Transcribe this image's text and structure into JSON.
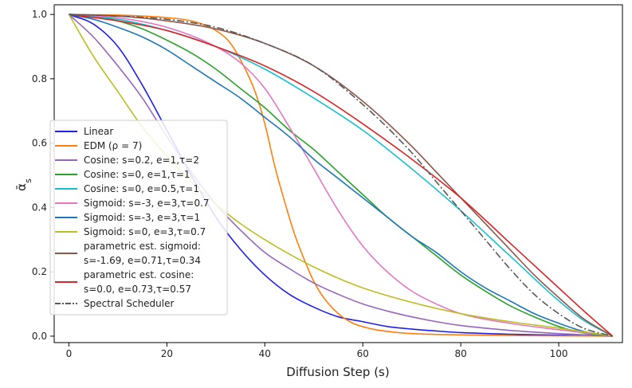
{
  "chart_data": {
    "type": "line",
    "title": "",
    "xlabel": "Diffusion Step (s)",
    "ylabel_main": "ᾱ",
    "ylabel_sub": "s",
    "xlim": [
      -3,
      113
    ],
    "ylim": [
      -0.02,
      1.03
    ],
    "xticks": [
      0,
      20,
      40,
      60,
      80,
      100
    ],
    "yticks": [
      0.0,
      0.2,
      0.4,
      0.6,
      0.8,
      1.0
    ],
    "xtick_labels": [
      "0",
      "20",
      "40",
      "60",
      "80",
      "100"
    ],
    "ytick_labels": [
      "0.0",
      "0.2",
      "0.4",
      "0.6",
      "0.8",
      "1.0"
    ],
    "legend_position": "lower-left",
    "series": [
      {
        "name": "Linear",
        "label_lines": [
          "Linear"
        ],
        "color": "#1f1fe6",
        "dash": "solid",
        "x": [
          0,
          5,
          10,
          15,
          20,
          25,
          30,
          35,
          40,
          45,
          50,
          55,
          60,
          65,
          70,
          75,
          80,
          90,
          100,
          111
        ],
        "y": [
          1.0,
          0.97,
          0.9,
          0.78,
          0.64,
          0.5,
          0.37,
          0.27,
          0.19,
          0.13,
          0.09,
          0.06,
          0.045,
          0.03,
          0.022,
          0.016,
          0.011,
          0.006,
          0.003,
          0.0
        ]
      },
      {
        "name": "EDM (ρ = 7)",
        "label_lines": [
          "EDM (ρ = 7)"
        ],
        "color": "#ff7f0e",
        "dash": "solid",
        "x": [
          0,
          5,
          10,
          15,
          20,
          25,
          30,
          33,
          36,
          38,
          40,
          42,
          44,
          46,
          48,
          50,
          52,
          55,
          58,
          62,
          66,
          70,
          80,
          90,
          100,
          111
        ],
        "y": [
          1.0,
          0.999,
          0.998,
          0.995,
          0.99,
          0.98,
          0.95,
          0.91,
          0.83,
          0.76,
          0.66,
          0.53,
          0.42,
          0.32,
          0.24,
          0.17,
          0.12,
          0.07,
          0.04,
          0.022,
          0.013,
          0.008,
          0.004,
          0.002,
          0.001,
          0.0
        ]
      },
      {
        "name": "Cosine: s=0.2, e=1,τ=2",
        "label_lines": [
          "Cosine: s=0.2, e=1,τ=2"
        ],
        "color": "#9467bd",
        "dash": "solid",
        "x": [
          0,
          5,
          10,
          15,
          20,
          25,
          30,
          35,
          40,
          45,
          50,
          55,
          60,
          65,
          70,
          75,
          80,
          90,
          100,
          111
        ],
        "y": [
          1.0,
          0.93,
          0.84,
          0.74,
          0.62,
          0.51,
          0.41,
          0.33,
          0.26,
          0.21,
          0.165,
          0.13,
          0.1,
          0.078,
          0.06,
          0.045,
          0.033,
          0.018,
          0.008,
          0.0
        ]
      },
      {
        "name": "Cosine: s=0, e=1,τ=1",
        "label_lines": [
          "Cosine: s=0, e=1,τ=1"
        ],
        "color": "#2ca02c",
        "dash": "solid",
        "x": [
          0,
          5,
          10,
          15,
          20,
          25,
          30,
          35,
          40,
          45,
          50,
          55,
          60,
          65,
          70,
          75,
          80,
          85,
          90,
          95,
          100,
          105,
          111
        ],
        "y": [
          1.0,
          0.995,
          0.98,
          0.955,
          0.92,
          0.88,
          0.83,
          0.77,
          0.71,
          0.64,
          0.58,
          0.51,
          0.44,
          0.37,
          0.31,
          0.25,
          0.19,
          0.14,
          0.095,
          0.06,
          0.03,
          0.01,
          0.0
        ]
      },
      {
        "name": "Cosine: s=0, e=0.5,τ=1",
        "label_lines": [
          "Cosine: s=0, e=0.5,τ=1"
        ],
        "color": "#17becf",
        "dash": "solid",
        "x": [
          0,
          10,
          20,
          30,
          40,
          50,
          60,
          70,
          80,
          90,
          100,
          105,
          111
        ],
        "y": [
          1.0,
          0.985,
          0.95,
          0.9,
          0.83,
          0.74,
          0.64,
          0.52,
          0.39,
          0.25,
          0.11,
          0.05,
          0.0
        ]
      },
      {
        "name": "Sigmoid: s=-3, e=3,τ=0.7",
        "label_lines": [
          "Sigmoid: s=-3, e=3,τ=0.7"
        ],
        "color": "#e377c2",
        "dash": "solid",
        "x": [
          0,
          10,
          20,
          30,
          35,
          40,
          45,
          50,
          55,
          60,
          65,
          70,
          75,
          80,
          90,
          100,
          111
        ],
        "y": [
          1.0,
          0.99,
          0.96,
          0.9,
          0.85,
          0.77,
          0.65,
          0.52,
          0.39,
          0.28,
          0.2,
          0.14,
          0.1,
          0.07,
          0.04,
          0.02,
          0.0
        ]
      },
      {
        "name": "Sigmoid: s=-3, e=3,τ=1",
        "label_lines": [
          "Sigmoid: s=-3, e=3,τ=1"
        ],
        "color": "#1f77b4",
        "dash": "solid",
        "x": [
          0,
          5,
          10,
          15,
          20,
          25,
          30,
          35,
          40,
          45,
          50,
          55,
          60,
          65,
          70,
          75,
          80,
          85,
          90,
          95,
          100,
          105,
          111
        ],
        "y": [
          1.0,
          0.985,
          0.96,
          0.93,
          0.89,
          0.84,
          0.79,
          0.74,
          0.68,
          0.62,
          0.55,
          0.49,
          0.43,
          0.37,
          0.31,
          0.26,
          0.2,
          0.15,
          0.11,
          0.07,
          0.04,
          0.015,
          0.0
        ]
      },
      {
        "name": "Sigmoid: s=0, e=3,τ=0.7",
        "label_lines": [
          "Sigmoid: s=0, e=3,τ=0.7"
        ],
        "color": "#bcbd22",
        "dash": "solid",
        "x": [
          0,
          5,
          10,
          15,
          20,
          25,
          30,
          35,
          40,
          45,
          50,
          55,
          60,
          70,
          80,
          90,
          100,
          111
        ],
        "y": [
          1.0,
          0.87,
          0.76,
          0.65,
          0.56,
          0.48,
          0.41,
          0.35,
          0.3,
          0.255,
          0.215,
          0.18,
          0.15,
          0.105,
          0.07,
          0.045,
          0.025,
          0.0
        ]
      },
      {
        "name": "parametric est. sigmoid: s=-1.69, e=0.71,τ=0.34",
        "label_lines": [
          "parametric est. sigmoid:",
          "s=-1.69, e=0.71,τ=0.34"
        ],
        "color": "#8c564b",
        "dash": "solid",
        "x": [
          0,
          10,
          20,
          30,
          40,
          50,
          60,
          70,
          75,
          80,
          85,
          90,
          95,
          100,
          105,
          111
        ],
        "y": [
          1.0,
          0.995,
          0.98,
          0.955,
          0.91,
          0.84,
          0.73,
          0.59,
          0.51,
          0.43,
          0.35,
          0.27,
          0.19,
          0.12,
          0.055,
          0.0
        ]
      },
      {
        "name": "parametric est. cosine: s=0.0, e=0.73,τ=0.57",
        "label_lines": [
          "parametric est. cosine:",
          "s=0.0, e=0.73,τ=0.57"
        ],
        "color": "#d62728",
        "dash": "solid",
        "x": [
          0,
          10,
          20,
          30,
          40,
          50,
          60,
          70,
          80,
          90,
          100,
          105,
          111
        ],
        "y": [
          1.0,
          0.98,
          0.95,
          0.9,
          0.84,
          0.76,
          0.66,
          0.55,
          0.43,
          0.29,
          0.15,
          0.08,
          0.0
        ]
      },
      {
        "name": "Spectral Scheduler",
        "label_lines": [
          "Spectral Scheduler"
        ],
        "color": "#595959",
        "dash": "dashdot",
        "x": [
          0,
          10,
          20,
          30,
          40,
          50,
          60,
          70,
          75,
          80,
          85,
          90,
          95,
          100,
          105,
          111
        ],
        "y": [
          1.0,
          0.995,
          0.985,
          0.96,
          0.91,
          0.84,
          0.72,
          0.57,
          0.48,
          0.39,
          0.3,
          0.21,
          0.13,
          0.07,
          0.025,
          0.0
        ]
      }
    ]
  }
}
